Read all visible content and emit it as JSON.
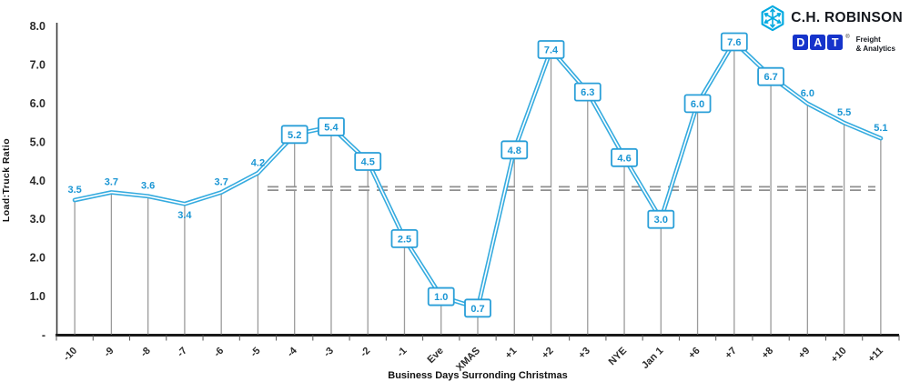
{
  "colors": {
    "line_blue": "#35ABDF",
    "label_blue": "#1B96D4",
    "box_border_blue": "#2A9FD8",
    "chr_logo_blue": "#00A9E0",
    "dat_logo_blue": "#1634CB",
    "logo_text_dark": "#15181E",
    "drop_line_gray": "#9B9B9B",
    "average_line_gray": "#8F8F8F",
    "axis_dark": "#1A1A1A",
    "tick_text": "#2B2B2B"
  },
  "logos": {
    "chr": {
      "name": "C.H. ROBINSON",
      "icon": "hexagon-snowflake"
    },
    "dat": {
      "letters": [
        "D",
        "A",
        "T"
      ],
      "registered_mark": "®",
      "tagline_line1": "Freight",
      "tagline_line2": "& Analytics"
    }
  },
  "chart_data": {
    "type": "line",
    "title": "",
    "xlabel": "Business Days Surronding Christmas",
    "ylabel": "Load:Truck Ratio",
    "ylim": [
      0,
      8
    ],
    "grid": false,
    "drop_lines": true,
    "legend": "none",
    "y_ticks": [
      {
        "value": 8,
        "label": "8.0"
      },
      {
        "value": 7,
        "label": "7.0"
      },
      {
        "value": 6,
        "label": "6.0"
      },
      {
        "value": 5,
        "label": "5.0"
      },
      {
        "value": 4,
        "label": "4.0"
      },
      {
        "value": 3,
        "label": "3.0"
      },
      {
        "value": 2,
        "label": "2.0"
      },
      {
        "value": 1,
        "label": "1.0"
      },
      {
        "value": 0,
        "label": "-"
      }
    ],
    "average_line": {
      "value": 3.8,
      "style": "double-dashed"
    },
    "points": [
      {
        "category": "-10",
        "value": 3.5,
        "label": "3.5",
        "boxed": false,
        "label_position": "above"
      },
      {
        "category": "-9",
        "value": 3.7,
        "label": "3.7",
        "boxed": false,
        "label_position": "above"
      },
      {
        "category": "-8",
        "value": 3.6,
        "label": "3.6",
        "boxed": false,
        "label_position": "above"
      },
      {
        "category": "-7",
        "value": 3.4,
        "label": "3.4",
        "boxed": false,
        "label_position": "below"
      },
      {
        "category": "-6",
        "value": 3.7,
        "label": "3.7",
        "boxed": false,
        "label_position": "above"
      },
      {
        "category": "-5",
        "value": 4.2,
        "label": "4.2",
        "boxed": false,
        "label_position": "above"
      },
      {
        "category": "-4",
        "value": 5.2,
        "label": "5.2",
        "boxed": true,
        "label_position": "box"
      },
      {
        "category": "-3",
        "value": 5.4,
        "label": "5.4",
        "boxed": true,
        "label_position": "box"
      },
      {
        "category": "-2",
        "value": 4.5,
        "label": "4.5",
        "boxed": true,
        "label_position": "box"
      },
      {
        "category": "-1",
        "value": 2.5,
        "label": "2.5",
        "boxed": true,
        "label_position": "box"
      },
      {
        "category": "Eve",
        "value": 1.0,
        "label": "1.0",
        "boxed": true,
        "label_position": "box"
      },
      {
        "category": "XMAS",
        "value": 0.7,
        "label": "0.7",
        "boxed": true,
        "label_position": "box"
      },
      {
        "category": "+1",
        "value": 4.8,
        "label": "4.8",
        "boxed": true,
        "label_position": "box"
      },
      {
        "category": "+2",
        "value": 7.4,
        "label": "7.4",
        "boxed": true,
        "label_position": "box"
      },
      {
        "category": "+3",
        "value": 6.3,
        "label": "6.3",
        "boxed": true,
        "label_position": "box"
      },
      {
        "category": "NYE",
        "value": 4.6,
        "label": "4.6",
        "boxed": true,
        "label_position": "box"
      },
      {
        "category": "Jan 1",
        "value": 3.0,
        "label": "3.0",
        "boxed": true,
        "label_position": "box"
      },
      {
        "category": "+6",
        "value": 6.0,
        "label": "6.0",
        "boxed": true,
        "label_position": "box"
      },
      {
        "category": "+7",
        "value": 7.6,
        "label": "7.6",
        "boxed": true,
        "label_position": "box"
      },
      {
        "category": "+8",
        "value": 6.7,
        "label": "6.7",
        "boxed": true,
        "label_position": "box"
      },
      {
        "category": "+9",
        "value": 6.0,
        "label": "6.0",
        "boxed": false,
        "label_position": "above"
      },
      {
        "category": "+10",
        "value": 5.5,
        "label": "5.5",
        "boxed": false,
        "label_position": "above"
      },
      {
        "category": "+11",
        "value": 5.1,
        "label": "5.1",
        "boxed": false,
        "label_position": "above"
      }
    ]
  }
}
